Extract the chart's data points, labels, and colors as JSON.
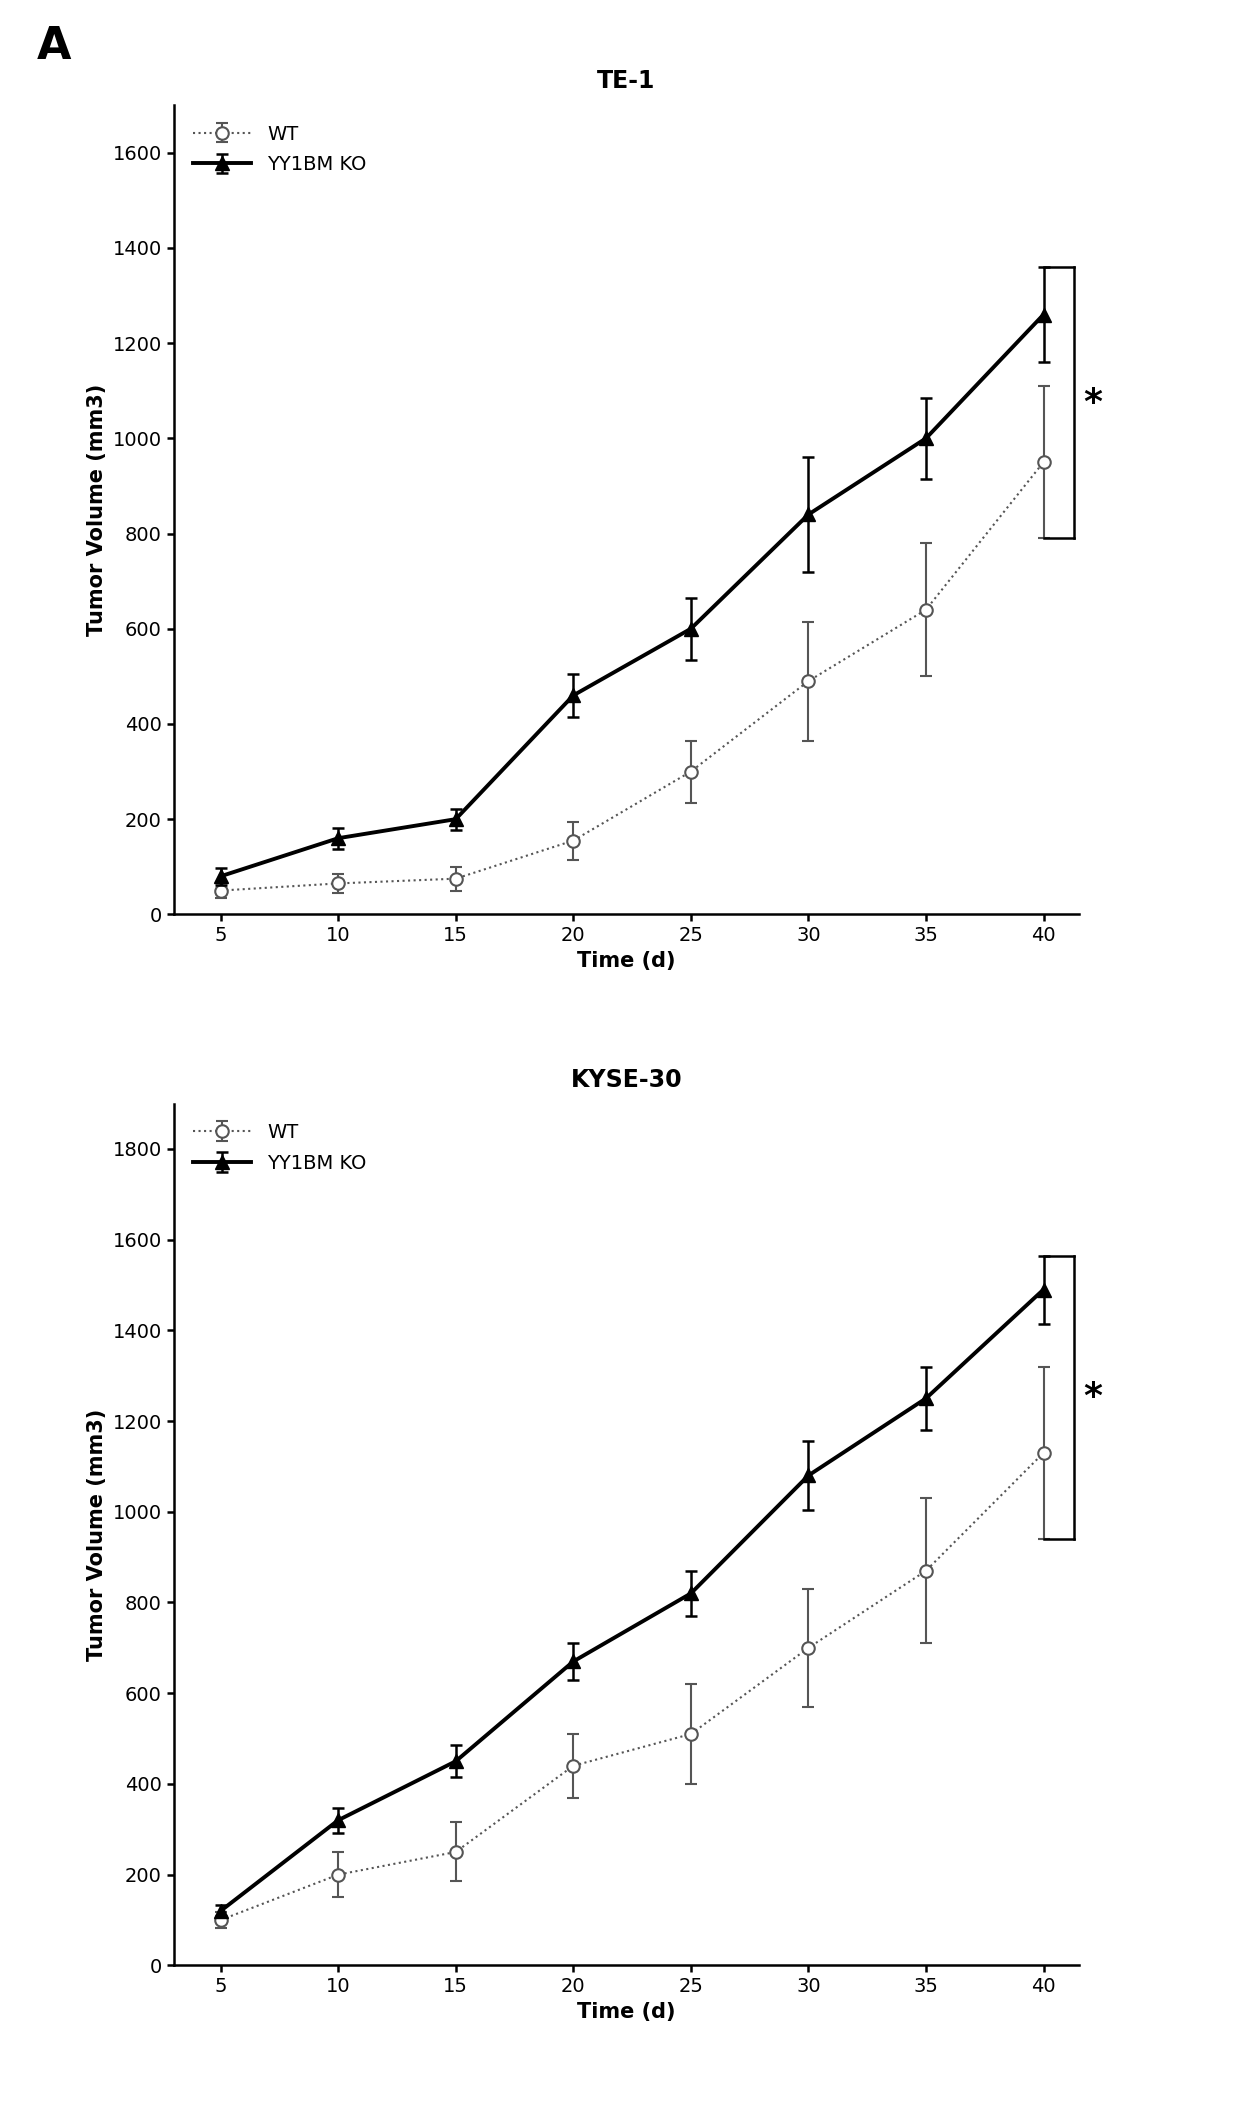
{
  "panel_label": "A",
  "plot1": {
    "title": "TE-1",
    "xlabel": "Time (d)",
    "ylabel": "Tumor Volume (mm3)",
    "x": [
      5,
      10,
      15,
      20,
      25,
      30,
      35,
      40
    ],
    "ko_y": [
      80,
      160,
      200,
      460,
      600,
      840,
      1000,
      1260
    ],
    "ko_err": [
      18,
      22,
      22,
      45,
      65,
      120,
      85,
      100
    ],
    "wt_y": [
      50,
      65,
      75,
      155,
      300,
      490,
      640,
      950
    ],
    "wt_err": [
      15,
      20,
      25,
      40,
      65,
      125,
      140,
      160
    ],
    "ylim": [
      0,
      1700
    ],
    "yticks": [
      0,
      200,
      400,
      600,
      800,
      1000,
      1200,
      1400,
      1600
    ],
    "significance": "*"
  },
  "plot2": {
    "title": "KYSE-30",
    "xlabel": "Time (d)",
    "ylabel": "Tumor Volume (mm3)",
    "x": [
      5,
      10,
      15,
      20,
      25,
      30,
      35,
      40
    ],
    "ko_y": [
      120,
      320,
      450,
      670,
      820,
      1080,
      1250,
      1490
    ],
    "ko_err": [
      12,
      28,
      35,
      40,
      50,
      75,
      70,
      75
    ],
    "wt_y": [
      100,
      200,
      250,
      440,
      510,
      700,
      870,
      1130
    ],
    "wt_err": [
      18,
      50,
      65,
      70,
      110,
      130,
      160,
      190
    ],
    "ylim": [
      0,
      1900
    ],
    "yticks": [
      0,
      200,
      400,
      600,
      800,
      1000,
      1200,
      1400,
      1600,
      1800
    ],
    "significance": "*"
  },
  "ko_color": "#000000",
  "wt_color": "#555555",
  "ko_linestyle": "-",
  "wt_linestyle": ":",
  "ko_marker": "^",
  "wt_marker": "o",
  "ko_markersize": 10,
  "wt_markersize": 9,
  "ko_linewidth": 2.8,
  "wt_linewidth": 1.5,
  "legend_ko": "YY1BM KO",
  "legend_wt": "WT",
  "bg_color": "#ffffff",
  "font_color": "#000000",
  "title_fontsize": 17,
  "label_fontsize": 15,
  "tick_fontsize": 14,
  "legend_fontsize": 14,
  "panel_label_fontsize": 32
}
